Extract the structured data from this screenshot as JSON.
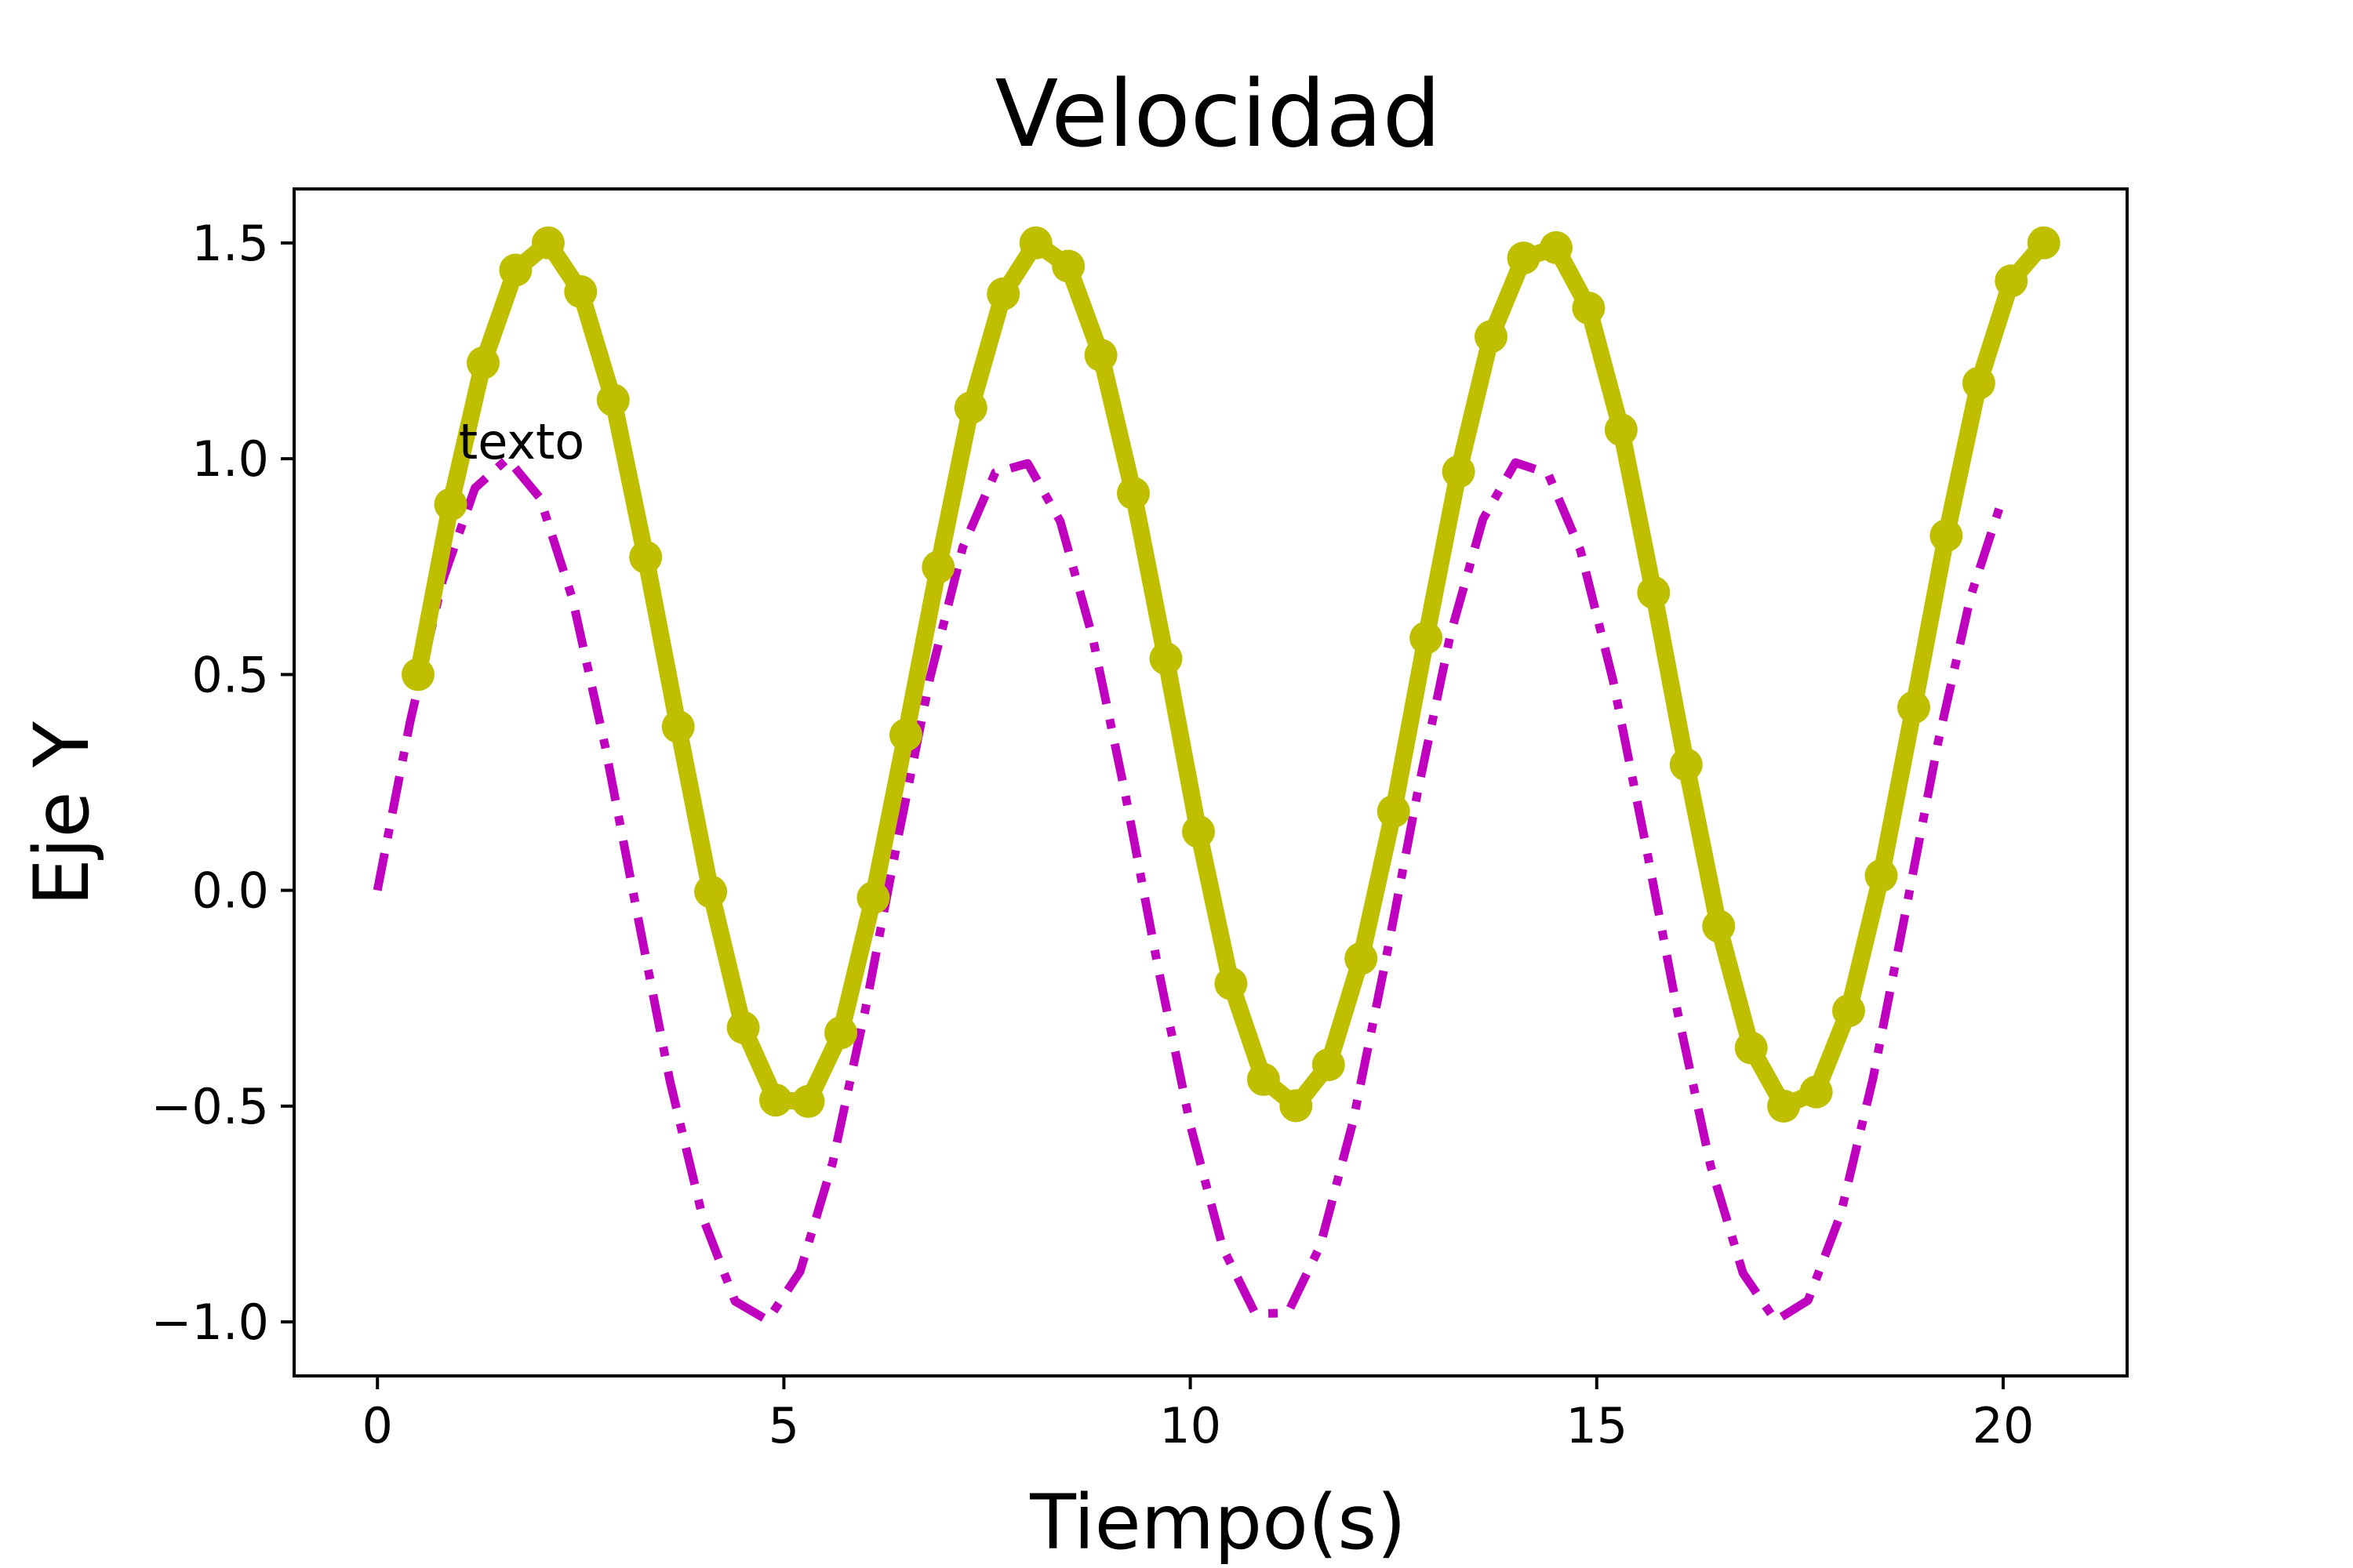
{
  "chart_data": {
    "type": "line",
    "title": "Velocidad",
    "xlabel": "Tiempo(s)",
    "ylabel": "Eje Y",
    "xlim": [
      -1.025,
      21.525
    ],
    "ylim": [
      -1.125,
      1.625
    ],
    "xticks": [
      0,
      5,
      10,
      15,
      20
    ],
    "xtick_labels": [
      "0",
      "5",
      "10",
      "15",
      "20"
    ],
    "yticks": [
      -1.0,
      -0.5,
      0.0,
      0.5,
      1.0,
      1.5
    ],
    "ytick_labels": [
      "−1.0",
      "−0.5",
      "0.0",
      "0.5",
      "1.0",
      "1.5"
    ],
    "grid": false,
    "legend": "none",
    "annotation": {
      "text": "texto",
      "x": 1,
      "y": 1
    },
    "series": [
      {
        "style": "dash-dot",
        "color": "#bf00bf",
        "x": [
          0,
          0.4,
          0.8,
          1.2,
          1.6,
          2.0,
          2.4,
          2.8,
          3.2,
          3.6,
          4.0,
          4.4,
          4.8,
          5.2,
          5.6,
          6.0,
          6.4,
          6.8,
          7.2,
          7.6,
          8.0,
          8.4,
          8.8,
          9.2,
          9.6,
          10.0,
          10.4,
          10.8,
          11.2,
          11.6,
          12.0,
          12.4,
          12.8,
          13.2,
          13.6,
          14.0,
          14.4,
          14.8,
          15.2,
          15.6,
          16.0,
          16.4,
          16.8,
          17.2,
          17.6,
          18.0,
          18.4,
          18.8,
          19.2,
          19.6,
          20.0
        ],
        "y": [
          0.0,
          0.389,
          0.717,
          0.932,
          1.0,
          0.909,
          0.675,
          0.335,
          -0.058,
          -0.443,
          -0.757,
          -0.952,
          -0.996,
          -0.883,
          -0.631,
          -0.279,
          0.117,
          0.494,
          0.794,
          0.968,
          0.989,
          0.855,
          0.585,
          0.223,
          -0.175,
          -0.544,
          -0.828,
          -0.981,
          -0.979,
          -0.823,
          -0.537,
          -0.166,
          0.231,
          0.592,
          0.86,
          0.991,
          0.966,
          0.788,
          0.487,
          0.108,
          -0.287,
          -0.638,
          -0.887,
          -0.997,
          -0.95,
          -0.751,
          -0.435,
          -0.049,
          0.343,
          0.681,
          0.913
        ]
      },
      {
        "style": "solid-markers",
        "color": "#bfbf00",
        "x": [
          0.5,
          0.9,
          1.3,
          1.7,
          2.1,
          2.5,
          2.9,
          3.3,
          3.7,
          4.1,
          4.5,
          4.9,
          5.3,
          5.7,
          6.1,
          6.5,
          6.9,
          7.3,
          7.7,
          8.1,
          8.5,
          8.9,
          9.3,
          9.7,
          10.1,
          10.5,
          10.9,
          11.3,
          11.7,
          12.1,
          12.5,
          12.9,
          13.3,
          13.7,
          14.1,
          14.5,
          14.9,
          15.3,
          15.7,
          16.1,
          16.5,
          16.9,
          17.3,
          17.7,
          18.1,
          18.5,
          18.9,
          19.3,
          19.7,
          20.1,
          20.5
        ],
        "y": [
          0.5,
          0.894,
          1.222,
          1.437,
          1.5,
          1.387,
          1.136,
          0.772,
          0.379,
          -0.003,
          -0.318,
          -0.486,
          -0.489,
          -0.33,
          -0.017,
          0.36,
          0.749,
          1.118,
          1.382,
          1.5,
          1.446,
          1.24,
          0.92,
          0.537,
          0.136,
          -0.216,
          -0.438,
          -0.499,
          -0.404,
          -0.158,
          0.183,
          0.585,
          0.97,
          1.283,
          1.465,
          1.489,
          1.349,
          1.067,
          0.69,
          0.291,
          -0.083,
          -0.365,
          -0.5,
          -0.467,
          -0.279,
          0.034,
          0.424,
          0.822,
          1.175,
          1.412,
          1.5
        ]
      }
    ]
  }
}
